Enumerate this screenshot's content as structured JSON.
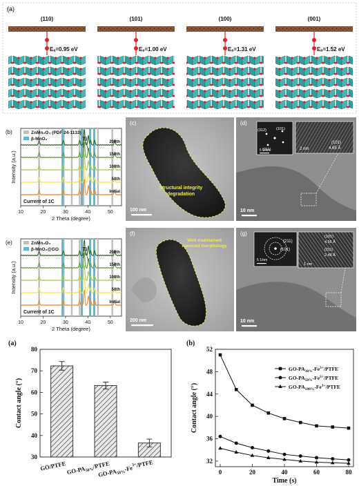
{
  "panel_a_top": {
    "label": "(a)",
    "facets": [
      {
        "facet": "(110)",
        "energy": "Eₐ=0.95 eV"
      },
      {
        "facet": "(101)",
        "energy": "Eₐ=1.00 eV"
      },
      {
        "facet": "(100)",
        "energy": "Eₐ=1.31 eV"
      },
      {
        "facet": "(001)",
        "energy": "Eₐ=1.52 eV"
      }
    ]
  },
  "panel_b": {
    "label": "(b)",
    "legend": [
      "ZnMn₂O₄ (PDF 24-1133)",
      "β-MnO₂"
    ],
    "ylabel": "Intensity (a.u.)",
    "xlabel": "2 Theta (degree)",
    "xticks": [
      "10",
      "20",
      "30",
      "40",
      "50"
    ],
    "curves": [
      "200th",
      "150th",
      "100th",
      "50th",
      "Initial"
    ],
    "peak_label": "Ti",
    "note": "Current of 1C"
  },
  "panel_e": {
    "label": "(e)",
    "legend": [
      "ZnMn₂O₄",
      "β-MnO₂@GO"
    ],
    "ylabel": "Intensity (a.u.)",
    "xlabel": "2 Theta (degree)",
    "xticks": [
      "10",
      "20",
      "30",
      "40",
      "50"
    ],
    "curves": [
      "200th",
      "150th",
      "100th",
      "50th",
      "Initial"
    ],
    "peak_label": "Ti",
    "note": "Current of 1C"
  },
  "panel_c": {
    "label": "(c)",
    "annotation_1": "Structural integrity",
    "annotation_2": "degradation",
    "scale": "100 nm"
  },
  "panel_d": {
    "label": "(d)",
    "spots": [
      "(312)",
      "(101)",
      "(211)"
    ],
    "fft_scale": "5 1/nm",
    "inset_scale": "2 nm",
    "plane": "(101)",
    "spacing": "4.65 Å",
    "scale": "10 nm"
  },
  "panel_f": {
    "label": "(f)",
    "annotation_1": "Well-maintained",
    "annotation_2": "nanorod morphology",
    "scale": "200 nm"
  },
  "panel_g": {
    "label": "(g)",
    "rings": [
      "(211)",
      "(101)"
    ],
    "fft_scale": "5 1/nm",
    "inset_scale": "1 nm",
    "plane_1": "(101)",
    "spacing_1": "4.56 Å",
    "plane_2": "(211)",
    "spacing_2": "2.48 Å",
    "scale": "10 nm"
  },
  "bottom_a": {
    "label": "(a)",
    "chart_data": {
      "type": "bar",
      "ylabel": "Contact angle (°)",
      "ylim": [
        30,
        80
      ],
      "yticks": [
        "30",
        "40",
        "50",
        "60",
        "70",
        "80"
      ],
      "categories": [
        "GO/PTFE",
        "GO-PA50%/PTFE",
        "GO-PA50%-Fe3+/PTFE"
      ],
      "values": [
        72.3,
        63.2,
        36.5
      ],
      "errors": [
        2.0,
        1.6,
        1.8
      ]
    }
  },
  "bottom_b": {
    "label": "(b)",
    "chart_data": {
      "type": "line",
      "xlabel": "Time (s)",
      "ylabel": "Contact angle (°)",
      "xlim": [
        -3,
        83
      ],
      "ylim": [
        31,
        52
      ],
      "xticks": [
        "0",
        "20",
        "40",
        "60",
        "80"
      ],
      "yticks": [
        "32",
        "36",
        "40",
        "44",
        "48",
        "52"
      ],
      "series": [
        {
          "name": "GO-PA30%-Fe3+/PTFE",
          "x": [
            0,
            10,
            20,
            30,
            40,
            50,
            60,
            70,
            80
          ],
          "values": [
            51.0,
            44.8,
            42.0,
            40.6,
            39.6,
            38.9,
            38.3,
            38.1,
            37.9
          ]
        },
        {
          "name": "GO-PA50%-Fe3+/PTFE",
          "x": [
            0,
            10,
            20,
            30,
            40,
            50,
            60,
            70,
            80
          ],
          "values": [
            36.4,
            35.2,
            34.4,
            33.8,
            33.2,
            32.9,
            32.6,
            32.4,
            32.2
          ]
        },
        {
          "name": "GO-PA100%-Fe3+/PTFE",
          "x": [
            0,
            10,
            20,
            30,
            40,
            50,
            60,
            70,
            80
          ],
          "values": [
            34.3,
            33.6,
            33.0,
            32.6,
            32.3,
            32.0,
            31.8,
            31.7,
            31.6
          ]
        }
      ]
    }
  }
}
